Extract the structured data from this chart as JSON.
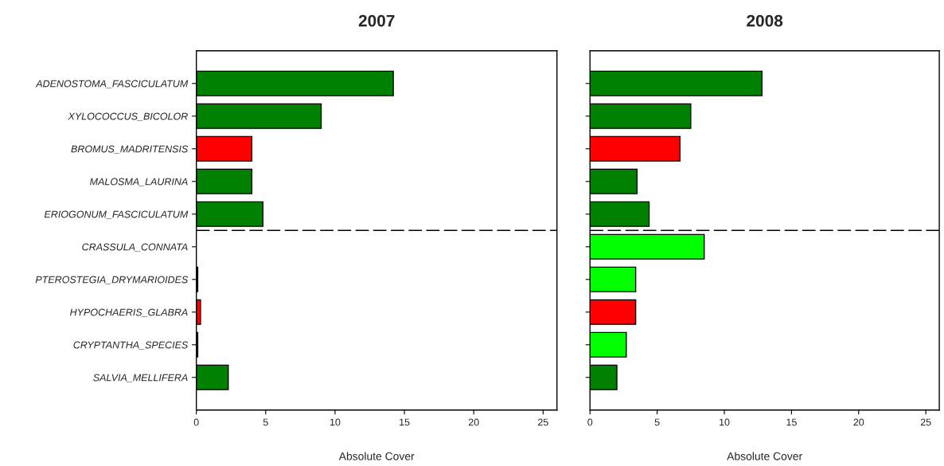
{
  "chart_data": [
    {
      "type": "bar",
      "orientation": "horizontal",
      "title": "2007",
      "xlabel": "Absolute Cover",
      "categories": [
        "ADENOSTOMA_FASCICULATUM",
        "XYLOCOCCUS_BICOLOR",
        "BROMUS_MADRITENSIS",
        "MALOSMA_LAURINA",
        "ERIOGONUM_FASCICULATUM",
        "CRASSULA_CONNATA",
        "PTEROSTEGIA_DRYMARIOIDES",
        "HYPOCHAERIS_GLABRA",
        "CRYPTANTHA_SPECIES",
        "SALVIA_MELLIFERA"
      ],
      "values": [
        14.2,
        9.0,
        4.0,
        4.0,
        4.8,
        null,
        0.1,
        0.3,
        0.1,
        2.3
      ],
      "colors": [
        "#008000",
        "#008000",
        "#ff0000",
        "#008000",
        "#008000",
        "#00ff00",
        "#008000",
        "#ff0000",
        "#00ff00",
        "#008000"
      ],
      "xlim": [
        0,
        26
      ],
      "xticks": [
        0,
        5,
        10,
        15,
        20,
        25
      ]
    },
    {
      "type": "bar",
      "orientation": "horizontal",
      "title": "2008",
      "xlabel": "Absolute Cover",
      "categories": [
        null,
        null,
        null,
        null,
        null,
        null,
        null,
        null,
        null,
        null
      ],
      "values": [
        12.8,
        7.5,
        6.7,
        3.5,
        4.4,
        8.5,
        3.4,
        3.4,
        2.7,
        2.0
      ],
      "colors": [
        "#008000",
        "#008000",
        "#ff0000",
        "#008000",
        "#008000",
        "#00ff00",
        "#00ff00",
        "#ff0000",
        "#00ff00",
        "#008000"
      ],
      "xlim": [
        0,
        26
      ],
      "xticks": [
        0,
        5,
        10,
        15,
        20,
        25
      ]
    }
  ]
}
